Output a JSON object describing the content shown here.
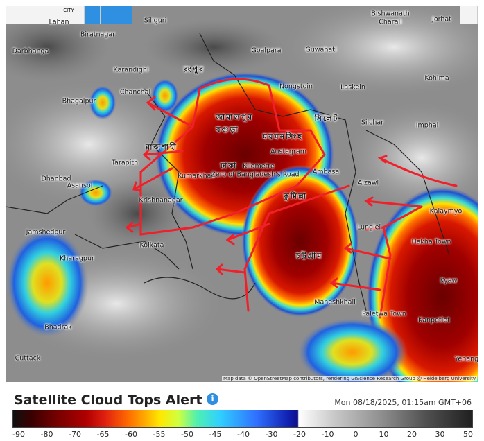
{
  "toolbar": {
    "city": "CITY"
  },
  "map": {
    "places": [
      "Lahan",
      "Siliguri",
      "Biratnagar",
      "Bishwanath",
      "Charali",
      "Jorhat",
      "Goalpara",
      "Guwahati",
      "Darbhanga",
      "Karandighi",
      "Kohima",
      "Nongstoin",
      "Laskein",
      "Chanchal",
      "Bhagalpur",
      "Silchar",
      "Imphal",
      "Austagram",
      "Tarapith",
      "Ambasa",
      "Dhanbad",
      "Asansol",
      "Aizawl",
      "Kumarkhali",
      "Krishnanagar",
      "Kalaymyo",
      "Jamshedpur",
      "Lunglei",
      "Kolkata",
      "Hakha Town",
      "Kharagpur",
      "Kyaw",
      "Maheshkhali",
      "Paletwa Town",
      "Kanpetlet",
      "Bhadrak",
      "Cuttack",
      "Yenang",
      "Kilometre",
      "Zero of Bangladesh's Road"
    ],
    "bengali_places": [
      "রংপুর",
      "জামালপুর",
      "বগুড়া",
      "ময়মনসিংহ",
      "সিলেট",
      "রাজশাহী",
      "ঢাকা",
      "কুমিল্লা",
      "চট্টগ্রাম"
    ],
    "attribution": "Map data © OpenStreetMap contributors, rendering GIScience Research Group @ Heidelberg University"
  },
  "legend": {
    "title": "Satellite Cloud Tops Alert",
    "timestamp": "Mon 08/18/2025, 01:15am GMT+06",
    "labels": [
      -90,
      -80,
      -70,
      -65,
      -60,
      -55,
      -50,
      -45,
      -40,
      -30,
      -20,
      -10,
      0,
      10,
      20,
      30,
      50
    ]
  }
}
